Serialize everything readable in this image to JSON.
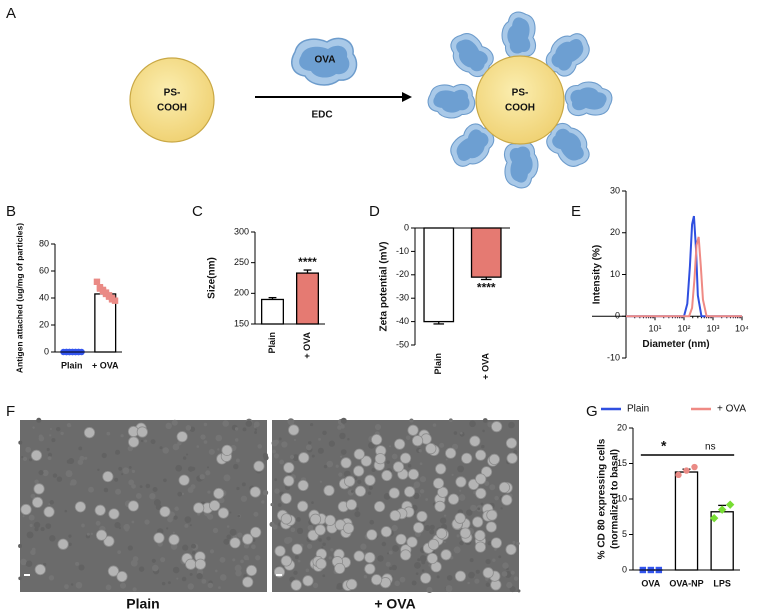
{
  "panel_a": {
    "label": "A",
    "left_particle": [
      "PS-",
      "COOH"
    ],
    "antigen": "OVA",
    "reagent": "EDC",
    "right_particle": [
      "PS-",
      "COOH"
    ]
  },
  "chart_data": [
    {
      "type": "bar",
      "label": "B",
      "ylabel": "Antigen attached (ug/mg of particles)",
      "categories": [
        "Plain",
        "+ OVA"
      ],
      "values": [
        0,
        43
      ],
      "errors": [
        0,
        2
      ],
      "colors": [
        "#ffffff",
        "#ffffff"
      ],
      "point_colors": [
        "#3355ee",
        "#ea8a85"
      ],
      "markers": [
        "circle",
        "square"
      ],
      "points": [
        [
          0,
          0,
          0,
          0,
          0,
          0,
          0,
          0,
          0,
          0,
          0,
          0
        ],
        [
          52,
          48,
          47,
          46,
          45,
          44,
          43,
          42,
          41,
          40,
          39,
          38
        ]
      ],
      "ylim": [
        0,
        80
      ],
      "yticks": [
        0,
        20,
        40,
        60,
        80
      ]
    },
    {
      "type": "bar",
      "label": "C",
      "ylabel": "Size(nm)",
      "categories": [
        "Plain",
        "+ OVA"
      ],
      "values": [
        190,
        233
      ],
      "errors": [
        3,
        5
      ],
      "colors": [
        "#ffffff",
        "#e57a72"
      ],
      "annotations": [
        {
          "text": "****",
          "category": 1
        }
      ],
      "ylim": [
        150,
        300
      ],
      "yticks": [
        150,
        200,
        250,
        300
      ]
    },
    {
      "type": "bar",
      "label": "D",
      "ylabel": "Zeta potential (mV)",
      "categories": [
        "Plain",
        "+ OVA"
      ],
      "values": [
        -40,
        -21
      ],
      "errors": [
        1,
        1
      ],
      "colors": [
        "#ffffff",
        "#e57a72"
      ],
      "annotations": [
        {
          "text": "****",
          "category": 1
        }
      ],
      "ylim": [
        -50,
        0
      ],
      "yticks": [
        -50,
        -40,
        -30,
        -20,
        -10,
        0
      ]
    },
    {
      "type": "line",
      "label": "E",
      "ylabel": "Intensity (%)",
      "xlabel": "Diameter (nm)",
      "log_x": true,
      "legend": "bottom",
      "series": [
        {
          "name": "Plain",
          "color": "#2f4fe0",
          "x": [
            1,
            100,
            130,
            160,
            190,
            220,
            260,
            300,
            400,
            10000
          ],
          "values": [
            0,
            0,
            3,
            12,
            22,
            24,
            16,
            5,
            0,
            0
          ]
        },
        {
          "name": "+ OVA",
          "color": "#ef8a84",
          "x": [
            1,
            150,
            190,
            230,
            270,
            320,
            380,
            450,
            600,
            10000
          ],
          "values": [
            0,
            0,
            2,
            9,
            17,
            19,
            12,
            4,
            0,
            0
          ]
        }
      ],
      "xlim": [
        1,
        10000
      ],
      "xticks": [
        {
          "value": 10,
          "label": "10¹"
        },
        {
          "value": 100,
          "label": "10²"
        },
        {
          "value": 1000,
          "label": "10³"
        },
        {
          "value": 10000,
          "label": "10⁴"
        }
      ],
      "ylim": [
        -10,
        30
      ],
      "yticks": [
        -10,
        0,
        10,
        20,
        30
      ]
    },
    {
      "type": "bar",
      "label": "G",
      "ylabel": [
        "% CD 80 expressing cells",
        "(normalized to basal)"
      ],
      "categories": [
        "OVA",
        "OVA-NP",
        "LPS"
      ],
      "values": [
        0,
        13.8,
        8.2
      ],
      "errors": [
        0,
        0.4,
        0.9
      ],
      "colors": [
        "#ffffff",
        "#ffffff",
        "#ffffff"
      ],
      "point_colors": [
        "#3355ee",
        "#ea8a85",
        "#77dd33"
      ],
      "markers": [
        "square",
        "circle",
        "diamond"
      ],
      "points": [
        [
          0,
          0,
          0
        ],
        [
          13.4,
          14.0,
          14.5
        ],
        [
          7.3,
          8.5,
          9.2
        ]
      ],
      "annotations": [
        {
          "text": "*",
          "from": 0,
          "to": 1
        },
        {
          "text": "ns",
          "from": 1,
          "to": 2
        }
      ],
      "ylim": [
        0,
        20
      ],
      "yticks": [
        0,
        5,
        10,
        15,
        20
      ]
    }
  ],
  "panel_f": {
    "label": "F",
    "images": [
      "Plain",
      "+ OVA"
    ]
  }
}
